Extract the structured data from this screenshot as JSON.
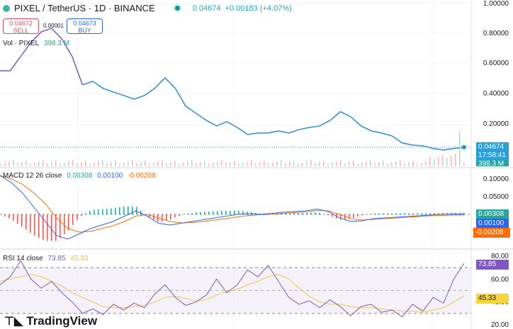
{
  "header": {
    "symbol": "PIXEL / TetherUS · 1D · BINANCE",
    "last_price": "0.04674",
    "change": "+0.00183 (+4.07%)",
    "status_dot_color": "#089981"
  },
  "trade": {
    "sell_price": "0.04672",
    "sell_label": "SELL",
    "spread": "0.00001",
    "buy_price": "0.04673",
    "buy_label": "BUY"
  },
  "volume_legend": {
    "label": "Vol · PIXEL",
    "value": "398.3 M"
  },
  "macd_legend": {
    "label": "MACD 12 26 close",
    "hist": "0.00308",
    "macd": "0.00100",
    "signal": "-0.00208"
  },
  "rsi_legend": {
    "label": "RSI 14 close",
    "rsi": "73.85",
    "ma": "45.33"
  },
  "price_axis": [
    "1.00000",
    "0.80000",
    "0.60000",
    "0.40000",
    "0.20000"
  ],
  "macd_axis": [
    "0.10000",
    "0.05000"
  ],
  "rsi_axis": [
    "80.00",
    "60.00",
    "40.00",
    "20.00"
  ],
  "tags": {
    "price": "0.04674",
    "countdown": "17:58:41",
    "volume": "398.3 M",
    "macd_hist": "0.00308",
    "macd": "0.00100",
    "macd_signal": "-0.00208",
    "rsi": "73.85",
    "rsi_ma": "45.33"
  },
  "logo": "TradingView",
  "colors": {
    "price_line": "#2a8fd0",
    "early_price": "#7e57c2",
    "macd": "#2962ff",
    "signal": "#ff6d00",
    "hist_up": "#26a69a",
    "hist_down": "#ef5350",
    "rsi": "#7e57c2",
    "rsi_ma": "#f0c83c",
    "rsi_band": "#ede7f6"
  },
  "chart_data": [
    {
      "type": "line",
      "title": "PIXEL / TetherUS · 1D · BINANCE",
      "ylim": [
        0,
        1.0
      ],
      "values": [
        0.554,
        0.554,
        0.648,
        0.742,
        0.812,
        0.836,
        0.765,
        0.648,
        0.46,
        0.484,
        0.437,
        0.413,
        0.39,
        0.366,
        0.39,
        0.437,
        0.507,
        0.437,
        0.319,
        0.272,
        0.225,
        0.188,
        0.216,
        0.178,
        0.131,
        0.141,
        0.141,
        0.155,
        0.141,
        0.164,
        0.178,
        0.188,
        0.225,
        0.282,
        0.249,
        0.188,
        0.155,
        0.141,
        0.122,
        0.075,
        0.061,
        0.056,
        0.038,
        0.028,
        0.038,
        0.047
      ]
    },
    {
      "type": "line",
      "title": "MACD 12 26 close",
      "ylim": [
        -0.09,
        0.11
      ],
      "series": [
        {
          "name": "MACD",
          "values": [
            0.11,
            0.09,
            0.06,
            0.02,
            -0.02,
            -0.06,
            -0.07,
            -0.055,
            -0.04,
            -0.03,
            -0.02,
            -0.005,
            0.01,
            -0.005,
            -0.025,
            -0.03,
            -0.025,
            -0.02,
            -0.015,
            -0.01,
            -0.005,
            0.0,
            0.002,
            0.0,
            0.003,
            0.006,
            0.008,
            0.01,
            0.015,
            0.008,
            -0.01,
            -0.02,
            -0.018,
            -0.012,
            -0.01,
            -0.008,
            -0.006,
            -0.004,
            -0.002,
            0.0,
            0.001,
            0.001
          ]
        },
        {
          "name": "Signal",
          "values": [
            0.11,
            0.1,
            0.085,
            0.06,
            0.03,
            -0.01,
            -0.04,
            -0.05,
            -0.048,
            -0.04,
            -0.032,
            -0.02,
            -0.005,
            0.0,
            -0.01,
            -0.02,
            -0.024,
            -0.023,
            -0.02,
            -0.016,
            -0.012,
            -0.007,
            -0.003,
            -0.001,
            0.0,
            0.003,
            0.005,
            0.007,
            0.011,
            0.01,
            0.0,
            -0.012,
            -0.016,
            -0.014,
            -0.012,
            -0.01,
            -0.008,
            -0.006,
            -0.004,
            -0.003,
            -0.002,
            -0.002
          ]
        }
      ]
    },
    {
      "type": "line",
      "title": "RSI 14 close",
      "ylim": [
        20,
        80
      ],
      "bands": [
        30,
        50,
        70
      ],
      "series": [
        {
          "name": "RSI",
          "values": [
            55,
            62,
            76,
            60,
            52,
            58,
            48,
            40,
            30,
            34,
            29,
            38,
            33,
            39,
            35,
            47,
            55,
            44,
            37,
            40,
            46,
            60,
            48,
            55,
            68,
            62,
            72,
            58,
            44,
            38,
            41,
            35,
            42,
            36,
            28,
            36,
            38,
            31,
            33,
            27,
            38,
            32,
            44,
            39,
            60,
            73.85
          ]
        },
        {
          "name": "RSI MA",
          "values": [
            58,
            60,
            62,
            64,
            62,
            58,
            54,
            48,
            44,
            40,
            36,
            35,
            35,
            36,
            37,
            40,
            44,
            45,
            43,
            41,
            42,
            46,
            49,
            51,
            55,
            58,
            62,
            64,
            60,
            52,
            45,
            40,
            38,
            38,
            36,
            35,
            35,
            34,
            33,
            32,
            32,
            31,
            33,
            35,
            40,
            45.33
          ]
        }
      ]
    }
  ]
}
